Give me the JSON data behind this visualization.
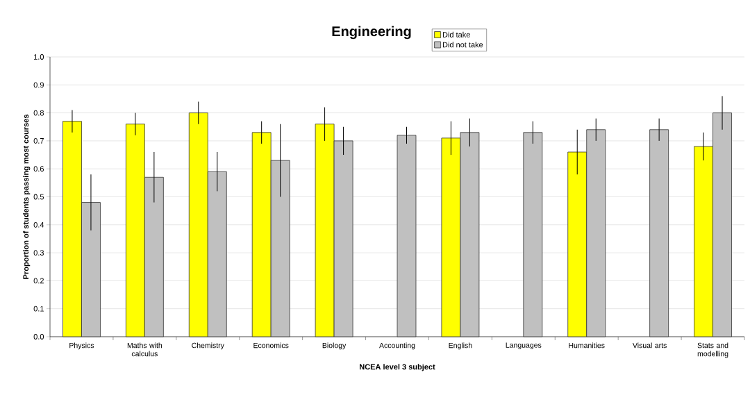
{
  "chart_data": {
    "type": "bar",
    "title": "Engineering",
    "xlabel": "NCEA level 3 subject",
    "ylabel": "Proportion of students passing most courses",
    "categories": [
      "Physics",
      "Maths with calculus",
      "Chemistry",
      "Economics",
      "Biology",
      "Accounting",
      "English",
      "Languages",
      "Humanities",
      "Visual arts",
      "Stats and modelling"
    ],
    "series": [
      {
        "name": "Did take",
        "color": "#ffff00",
        "values": [
          0.77,
          0.76,
          0.8,
          0.73,
          0.76,
          null,
          0.71,
          null,
          0.66,
          null,
          0.68
        ],
        "errors": [
          [
            0.73,
            0.81
          ],
          [
            0.72,
            0.8
          ],
          [
            0.76,
            0.84
          ],
          [
            0.69,
            0.77
          ],
          [
            0.7,
            0.82
          ],
          null,
          [
            0.65,
            0.77
          ],
          null,
          [
            0.58,
            0.74
          ],
          null,
          [
            0.63,
            0.73
          ]
        ]
      },
      {
        "name": "Did not take",
        "color": "#c0c0c0",
        "values": [
          0.48,
          0.57,
          0.59,
          0.63,
          0.7,
          0.72,
          0.73,
          0.73,
          0.74,
          0.74,
          0.8
        ],
        "errors": [
          [
            0.38,
            0.58
          ],
          [
            0.48,
            0.66
          ],
          [
            0.52,
            0.66
          ],
          [
            0.5,
            0.76
          ],
          [
            0.65,
            0.75
          ],
          [
            0.69,
            0.75
          ],
          [
            0.68,
            0.78
          ],
          [
            0.69,
            0.77
          ],
          [
            0.7,
            0.78
          ],
          [
            0.7,
            0.78
          ],
          [
            0.74,
            0.86
          ]
        ]
      }
    ],
    "ylim": [
      0,
      1
    ],
    "yticks": [
      {
        "value": 0,
        "label": "0.0"
      },
      {
        "value": 0.1,
        "label": "0.1"
      },
      {
        "value": 0.2,
        "label": "0.2"
      },
      {
        "value": 0.3,
        "label": "0.3"
      },
      {
        "value": 0.4,
        "label": "0.4"
      },
      {
        "value": 0.5,
        "label": "0.5"
      },
      {
        "value": 0.6,
        "label": "0.6"
      },
      {
        "value": 0.7,
        "label": "0.7"
      },
      {
        "value": 0.8,
        "label": "0.8"
      },
      {
        "value": 0.9,
        "label": "0.9"
      },
      {
        "value": 1,
        "label": "1.0"
      }
    ],
    "grid": "y",
    "legend": "top"
  }
}
